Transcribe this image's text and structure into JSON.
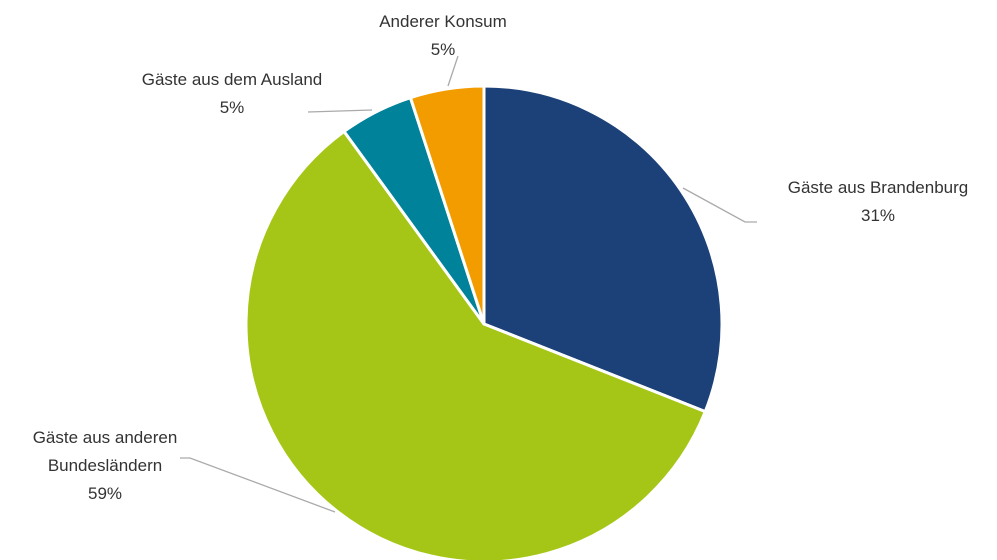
{
  "chart_data": {
    "type": "pie",
    "categories": [
      "Gäste aus Brandenburg",
      "Gäste aus anderen Bundesländern",
      "Gäste aus dem Ausland",
      "Anderer Konsum"
    ],
    "values": [
      31,
      59,
      5,
      5
    ],
    "value_labels": [
      "31%",
      "59%",
      "5%",
      "5%"
    ],
    "colors": [
      "#1b4178",
      "#a5c616",
      "#00829b",
      "#f39c00"
    ]
  }
}
